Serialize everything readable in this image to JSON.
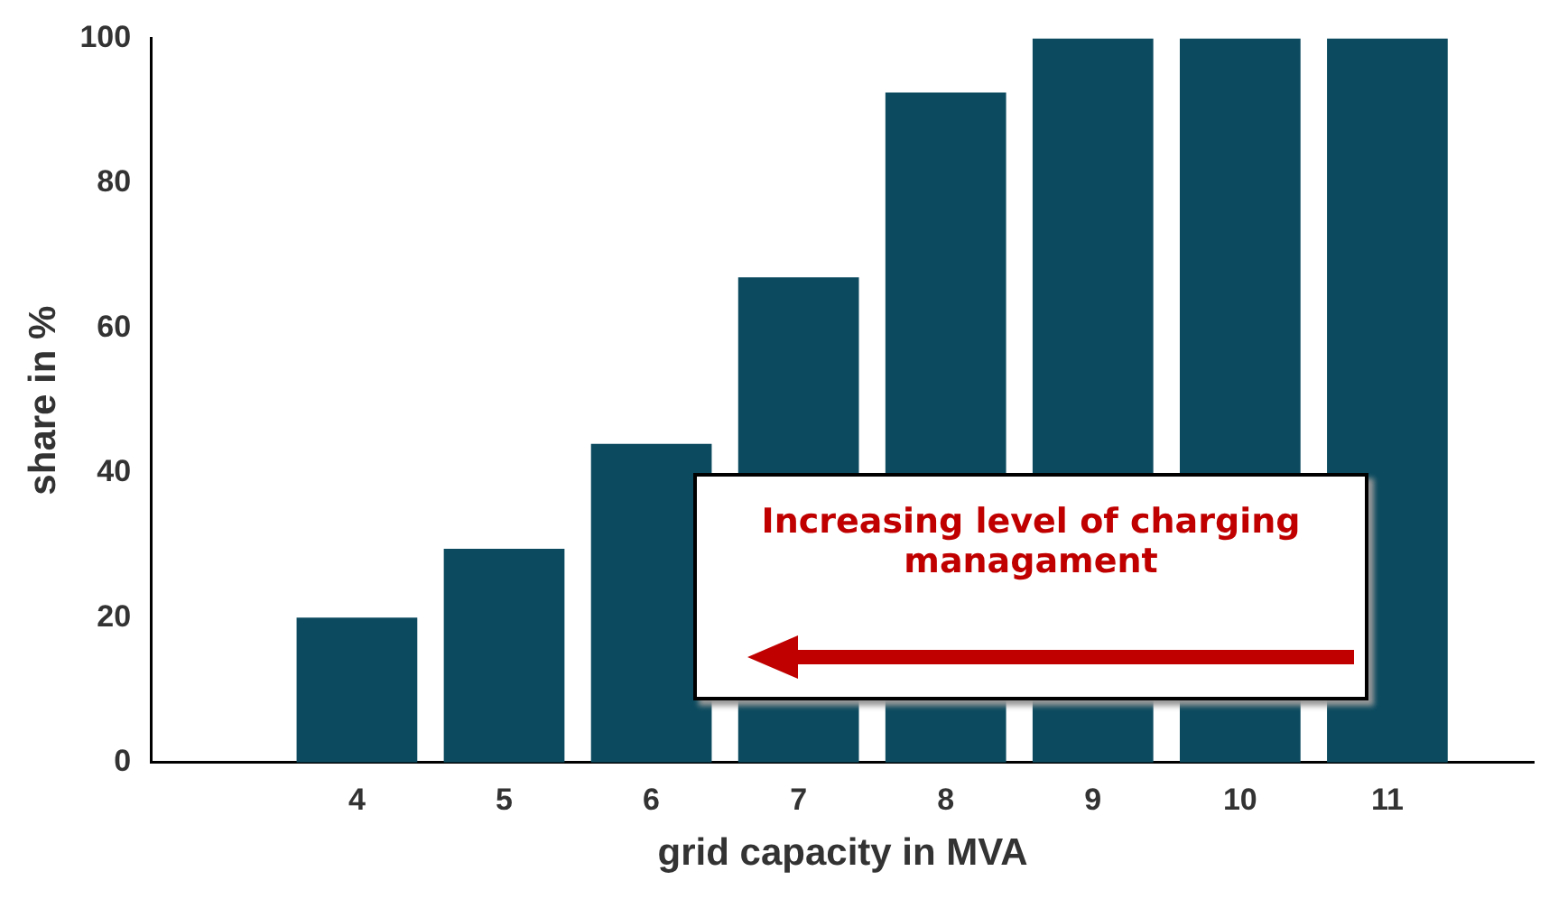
{
  "chart_data": {
    "type": "bar",
    "xlabel": "grid capacity in MVA",
    "ylabel": "share in %",
    "x": [
      4,
      5,
      6,
      7,
      8,
      9,
      10,
      11
    ],
    "values": [
      20,
      29.5,
      44,
      67,
      92.5,
      100,
      100,
      100
    ],
    "color": "#0b4a5f",
    "xlim": [
      2.6,
      12
    ],
    "xticks": [
      4,
      5,
      6,
      7,
      8,
      9,
      10,
      11
    ],
    "ylim": [
      0,
      100
    ],
    "yticks": [
      0,
      20,
      40,
      60,
      80,
      100
    ],
    "grid": false,
    "legend": false,
    "annotations": [
      "Increasing level of charging managament"
    ]
  }
}
